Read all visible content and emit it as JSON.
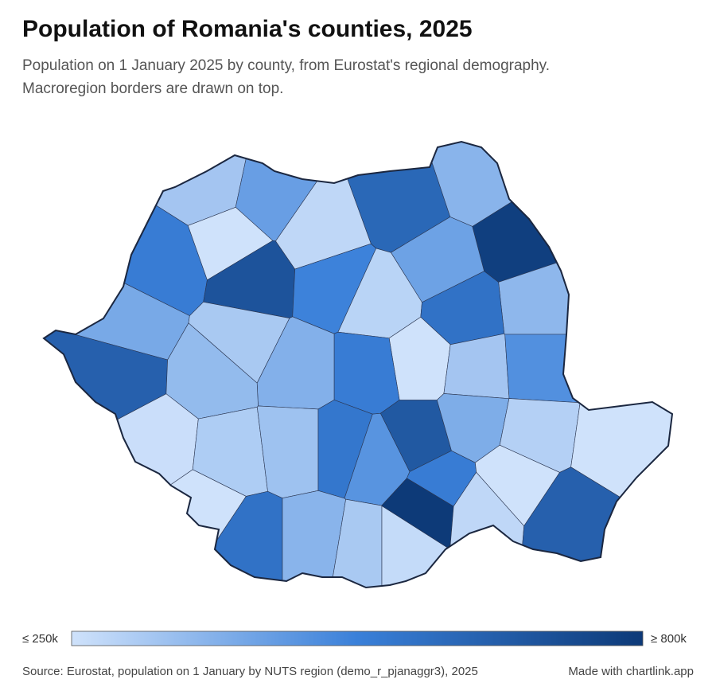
{
  "chart_data": {
    "type": "choropleth",
    "title": "Population of Romania's counties, 2025",
    "subtitle": [
      "Population on 1 January 2025 by county, from Eurostat's regional demography.",
      "Macroregion borders are drawn on top."
    ],
    "regions": {
      "values": [
        330000,
        440000,
        620000,
        380000,
        540000,
        200000,
        700000,
        280000,
        780000,
        430000,
        520000,
        290000,
        370000,
        580000,
        410000,
        320000,
        200000,
        540000,
        390000,
        650000,
        360000,
        330000,
        480000,
        260000,
        310000,
        340000,
        560000,
        470000,
        680000,
        400000,
        300000,
        190000,
        230000,
        580000,
        380000,
        320000,
        270000,
        540000,
        1700000,
        280000,
        250000,
        650000
      ]
    },
    "scale": [
      {
        "value": 250000,
        "label": "≤ 250k"
      },
      {
        "value": 800000,
        "label": "≥ 800k"
      }
    ],
    "colors": [
      "#cfe2fb",
      "#3a80d9",
      "#0d3a78"
    ],
    "source": "Source: Eurostat, population on 1 January by NUTS region (demo_r_pjanaggr3), 2025",
    "credit": "Made with chartlink.app"
  }
}
